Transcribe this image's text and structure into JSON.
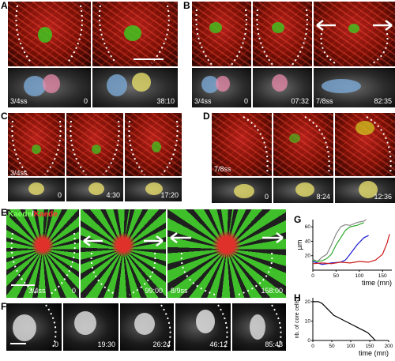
{
  "letters": {
    "A": "A",
    "B": "B",
    "C": "C",
    "D": "D",
    "E": "E",
    "F": "F",
    "G": "G",
    "H": "H"
  },
  "A": {
    "stage": "3/4ss",
    "t1": "0",
    "t2": "38:10"
  },
  "B": {
    "stage1": "3/4ss",
    "stage2": "7/8ss",
    "t1": "0",
    "t2": "07:32",
    "t3": "82:35"
  },
  "C": {
    "stage": "3/4ss",
    "t1": "0",
    "t2": "4:30",
    "t3": "17:20"
  },
  "D": {
    "stage": "7/8ss",
    "t1": "0",
    "t2": "8:24",
    "t3": "12:36"
  },
  "E": {
    "legend_green": "Kaede",
    "legend_sep": "/",
    "legend_red": "Kaede",
    "stage1": "3/4ss",
    "t1": "0",
    "t2": "99:00",
    "stage3": "8/9ss",
    "t3": "158:00"
  },
  "F": {
    "t1": "0",
    "t2": "19:30",
    "t3": "26:24",
    "t4": "46:12",
    "t5": "85:48"
  },
  "chart_data": [
    {
      "type": "line",
      "panel": "G",
      "ylabel": "µm",
      "xlabel": "time (mn)",
      "xticks": [
        0,
        50,
        100,
        150
      ],
      "yticks": [
        20,
        40,
        60
      ],
      "xlim": [
        0,
        170
      ],
      "ylim": [
        0,
        70
      ],
      "series": [
        {
          "color": "#888888",
          "x": [
            0,
            10,
            20,
            30,
            40,
            50,
            60,
            70,
            80,
            95,
            110,
            115
          ],
          "y": [
            15,
            12,
            18,
            22,
            35,
            50,
            60,
            63,
            62,
            66,
            68,
            70
          ]
        },
        {
          "color": "#2fa82f",
          "x": [
            0,
            10,
            20,
            30,
            40,
            50,
            60,
            70,
            80,
            95,
            110
          ],
          "y": [
            14,
            12,
            13,
            16,
            22,
            35,
            45,
            55,
            60,
            62,
            66
          ]
        },
        {
          "color": "#1a1ad0",
          "x": [
            0,
            20,
            40,
            60,
            70,
            80,
            95,
            110,
            120
          ],
          "y": [
            12,
            8,
            10,
            11,
            14,
            22,
            35,
            45,
            48
          ]
        },
        {
          "color": "#cc1a1a",
          "x": [
            0,
            20,
            40,
            60,
            80,
            100,
            120,
            135,
            150,
            160,
            165
          ],
          "y": [
            9,
            10,
            9,
            11,
            10,
            12,
            11,
            14,
            22,
            38,
            50
          ]
        }
      ]
    },
    {
      "type": "line",
      "panel": "H",
      "ylabel": "nb. of core cells",
      "xlabel": "time (mn)",
      "xticks": [
        0,
        50,
        100,
        150,
        200
      ],
      "yticks": [
        0,
        10,
        20
      ],
      "xlim": [
        0,
        200
      ],
      "ylim": [
        0,
        22
      ],
      "series": [
        {
          "color": "#000000",
          "x": [
            0,
            15,
            25,
            35,
            45,
            55,
            65,
            75,
            85,
            95,
            105,
            115,
            125,
            135,
            145,
            155,
            160,
            165
          ],
          "y": [
            20,
            20,
            19,
            17,
            15,
            13,
            12,
            11,
            10,
            9,
            8,
            7,
            6,
            5,
            4,
            2,
            1,
            0
          ]
        }
      ]
    }
  ]
}
